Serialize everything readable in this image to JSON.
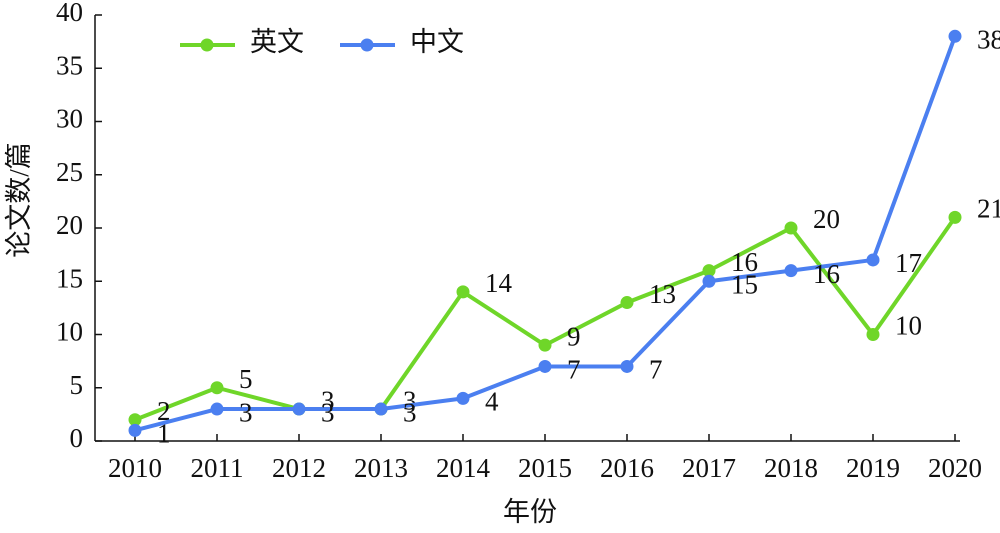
{
  "chart_data": {
    "type": "line",
    "x_label": "年份",
    "y_label": "论文数/篇",
    "categories": [
      "2010",
      "2011",
      "2012",
      "2013",
      "2014",
      "2015",
      "2016",
      "2017",
      "2018",
      "2019",
      "2020"
    ],
    "series": [
      {
        "name": "英文",
        "color": "#6fd629",
        "values": [
          2,
          5,
          3,
          3,
          14,
          9,
          13,
          16,
          20,
          10,
          21
        ]
      },
      {
        "name": "中文",
        "color": "#4b7ff0",
        "values": [
          1,
          3,
          3,
          3,
          4,
          7,
          7,
          15,
          16,
          17,
          38
        ]
      }
    ],
    "ylim": [
      0,
      40
    ],
    "yticks": [
      0,
      5,
      10,
      15,
      20,
      25,
      30,
      35,
      40
    ],
    "grid": false,
    "legend": "top-left"
  }
}
